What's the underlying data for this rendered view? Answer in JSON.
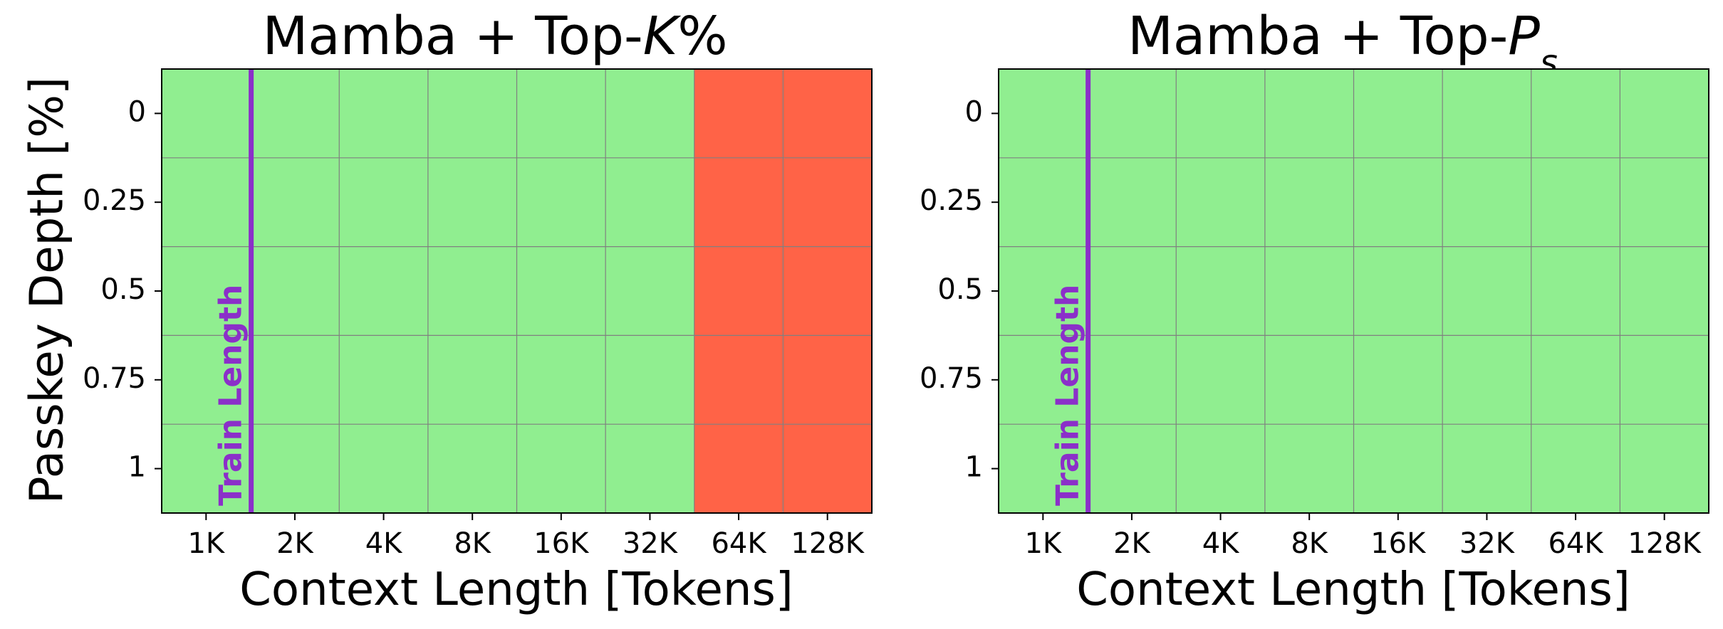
{
  "figure": {
    "ylabel": "Passkey Depth [%]"
  },
  "colors": {
    "pass": "#90EE90",
    "fail": "#FF6347",
    "train_line": "#8B2FC9",
    "grid": "#808080"
  },
  "chart_data": [
    {
      "type": "heatmap",
      "title": "Mamba + Top-",
      "title_italic_symbol": "K",
      "title_suffix": "%",
      "xlabel": "Context Length [Tokens]",
      "ylabel": "Passkey Depth [%]",
      "x_categories": [
        "1K",
        "2K",
        "4K",
        "8K",
        "16K",
        "32K",
        "64K",
        "128K"
      ],
      "y_categories": [
        "0",
        "0.25",
        "0.5",
        "0.75",
        "1"
      ],
      "values": [
        [
          1,
          1,
          1,
          1,
          1,
          1,
          0,
          0
        ],
        [
          1,
          1,
          1,
          1,
          1,
          1,
          0,
          0
        ],
        [
          1,
          1,
          1,
          1,
          1,
          1,
          0,
          0
        ],
        [
          1,
          1,
          1,
          1,
          1,
          1,
          0,
          0
        ],
        [
          1,
          1,
          1,
          1,
          1,
          1,
          0,
          0
        ]
      ],
      "train_length_label": "Train Length",
      "train_length_at": "2K",
      "grid": true
    },
    {
      "type": "heatmap",
      "title": "Mamba + Top-",
      "title_italic_symbol": "P",
      "title_subscript": "s",
      "xlabel": "Context Length [Tokens]",
      "ylabel": "",
      "x_categories": [
        "1K",
        "2K",
        "4K",
        "8K",
        "16K",
        "32K",
        "64K",
        "128K"
      ],
      "y_categories": [
        "0",
        "0.25",
        "0.5",
        "0.75",
        "1"
      ],
      "values": [
        [
          1,
          1,
          1,
          1,
          1,
          1,
          1,
          1
        ],
        [
          1,
          1,
          1,
          1,
          1,
          1,
          1,
          1
        ],
        [
          1,
          1,
          1,
          1,
          1,
          1,
          1,
          1
        ],
        [
          1,
          1,
          1,
          1,
          1,
          1,
          1,
          1
        ],
        [
          1,
          1,
          1,
          1,
          1,
          1,
          1,
          1
        ]
      ],
      "train_length_label": "Train Length",
      "train_length_at": "2K",
      "grid": true
    }
  ]
}
